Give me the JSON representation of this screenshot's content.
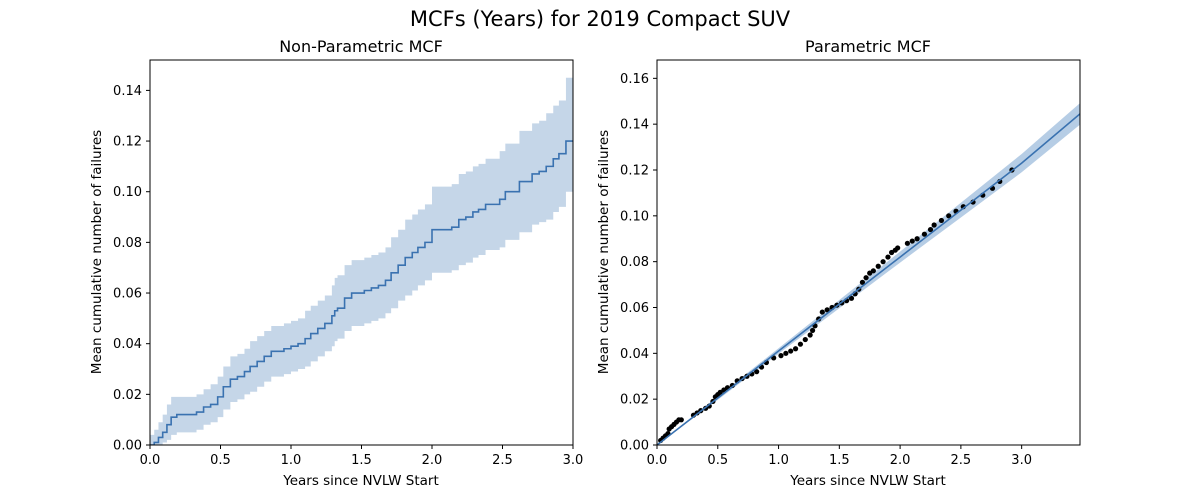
{
  "figure": {
    "title": "MCFs (Years) for 2019 Compact SUV"
  },
  "chart_data": [
    {
      "type": "line",
      "title": "Non-Parametric MCF",
      "xlabel": "Years since NVLW Start",
      "ylabel": "Mean cumulative number of failures",
      "xlim": [
        0,
        3.0
      ],
      "ylim": [
        0,
        0.152
      ],
      "xticks": [
        "0.0",
        "0.5",
        "1.0",
        "1.5",
        "2.0",
        "2.5",
        "3.0"
      ],
      "yticks": [
        "0.00",
        "0.02",
        "0.04",
        "0.06",
        "0.08",
        "0.10",
        "0.12",
        "0.14"
      ],
      "grid": false,
      "colors": {
        "line": "#3a72b0",
        "band": "#c5d6e8"
      },
      "series": [
        {
          "style": "step",
          "x": [
            0.0,
            0.03,
            0.06,
            0.09,
            0.12,
            0.15,
            0.19,
            0.24,
            0.29,
            0.33,
            0.38,
            0.43,
            0.48,
            0.52,
            0.57,
            0.62,
            0.67,
            0.71,
            0.76,
            0.81,
            0.86,
            0.9,
            0.95,
            1.0,
            1.05,
            1.1,
            1.14,
            1.19,
            1.24,
            1.29,
            1.31,
            1.33,
            1.38,
            1.43,
            1.48,
            1.52,
            1.57,
            1.62,
            1.67,
            1.71,
            1.76,
            1.81,
            1.86,
            1.9,
            1.95,
            2.0,
            2.05,
            2.1,
            2.14,
            2.19,
            2.24,
            2.29,
            2.33,
            2.38,
            2.43,
            2.48,
            2.52,
            2.57,
            2.62,
            2.67,
            2.71,
            2.76,
            2.81,
            2.86,
            2.9,
            2.95,
            3.0
          ],
          "y": [
            0.0,
            0.001,
            0.003,
            0.005,
            0.008,
            0.011,
            0.012,
            0.012,
            0.012,
            0.013,
            0.015,
            0.016,
            0.019,
            0.023,
            0.026,
            0.027,
            0.029,
            0.031,
            0.033,
            0.035,
            0.037,
            0.037,
            0.038,
            0.039,
            0.04,
            0.042,
            0.044,
            0.046,
            0.048,
            0.051,
            0.053,
            0.054,
            0.058,
            0.06,
            0.06,
            0.061,
            0.062,
            0.063,
            0.065,
            0.068,
            0.071,
            0.074,
            0.076,
            0.078,
            0.08,
            0.085,
            0.085,
            0.085,
            0.086,
            0.089,
            0.09,
            0.092,
            0.093,
            0.095,
            0.095,
            0.097,
            0.1,
            0.1,
            0.104,
            0.104,
            0.107,
            0.108,
            0.11,
            0.113,
            0.115,
            0.12,
            0.12
          ]
        }
      ],
      "band": {
        "lower": [
          0.0,
          0.0,
          0.0,
          0.001,
          0.002,
          0.004,
          0.005,
          0.005,
          0.005,
          0.006,
          0.008,
          0.009,
          0.011,
          0.014,
          0.017,
          0.018,
          0.02,
          0.021,
          0.023,
          0.025,
          0.027,
          0.027,
          0.028,
          0.029,
          0.03,
          0.031,
          0.033,
          0.035,
          0.037,
          0.039,
          0.041,
          0.042,
          0.045,
          0.047,
          0.047,
          0.048,
          0.049,
          0.05,
          0.052,
          0.054,
          0.057,
          0.059,
          0.061,
          0.063,
          0.065,
          0.068,
          0.068,
          0.068,
          0.069,
          0.071,
          0.072,
          0.074,
          0.075,
          0.077,
          0.077,
          0.078,
          0.081,
          0.081,
          0.084,
          0.084,
          0.087,
          0.088,
          0.089,
          0.092,
          0.094,
          0.1,
          0.1
        ],
        "upper": [
          0.004,
          0.006,
          0.009,
          0.012,
          0.016,
          0.019,
          0.019,
          0.019,
          0.019,
          0.02,
          0.022,
          0.024,
          0.027,
          0.031,
          0.035,
          0.036,
          0.038,
          0.041,
          0.043,
          0.045,
          0.047,
          0.047,
          0.048,
          0.049,
          0.05,
          0.053,
          0.055,
          0.057,
          0.059,
          0.063,
          0.066,
          0.067,
          0.071,
          0.073,
          0.073,
          0.074,
          0.075,
          0.076,
          0.078,
          0.082,
          0.085,
          0.089,
          0.091,
          0.093,
          0.095,
          0.102,
          0.102,
          0.102,
          0.103,
          0.107,
          0.108,
          0.11,
          0.111,
          0.113,
          0.113,
          0.116,
          0.119,
          0.119,
          0.124,
          0.124,
          0.127,
          0.128,
          0.131,
          0.134,
          0.136,
          0.145,
          0.145
        ]
      }
    },
    {
      "type": "scatter",
      "title": "Parametric MCF",
      "xlabel": "Years since NVLW Start",
      "ylabel": "Mean cumulative number of failures",
      "xlim": [
        0,
        3.48
      ],
      "ylim": [
        0,
        0.168
      ],
      "xticks": [
        "0.0",
        "0.5",
        "1.0",
        "1.5",
        "2.0",
        "2.5",
        "3.0"
      ],
      "yticks": [
        "0.00",
        "0.02",
        "0.04",
        "0.06",
        "0.08",
        "0.10",
        "0.12",
        "0.14",
        "0.16"
      ],
      "grid": false,
      "colors": {
        "line": "#3a72b0",
        "band": "#a9c4e0",
        "points": "#000000"
      },
      "series": [
        {
          "style": "points",
          "x": [
            0.03,
            0.05,
            0.07,
            0.09,
            0.1,
            0.12,
            0.14,
            0.16,
            0.18,
            0.2,
            0.3,
            0.33,
            0.36,
            0.4,
            0.43,
            0.46,
            0.48,
            0.5,
            0.52,
            0.55,
            0.58,
            0.62,
            0.66,
            0.7,
            0.74,
            0.78,
            0.82,
            0.86,
            0.9,
            0.96,
            1.02,
            1.06,
            1.1,
            1.14,
            1.18,
            1.22,
            1.26,
            1.28,
            1.3,
            1.33,
            1.36,
            1.4,
            1.44,
            1.48,
            1.52,
            1.56,
            1.6,
            1.63,
            1.66,
            1.69,
            1.72,
            1.75,
            1.78,
            1.82,
            1.86,
            1.9,
            1.93,
            1.96,
            1.98,
            2.06,
            2.1,
            2.14,
            2.2,
            2.25,
            2.28,
            2.34,
            2.4,
            2.46,
            2.52,
            2.6,
            2.68,
            2.76,
            2.82,
            2.92
          ],
          "y": [
            0.002,
            0.003,
            0.004,
            0.005,
            0.007,
            0.008,
            0.009,
            0.01,
            0.011,
            0.011,
            0.013,
            0.014,
            0.015,
            0.016,
            0.017,
            0.019,
            0.021,
            0.022,
            0.023,
            0.024,
            0.025,
            0.026,
            0.028,
            0.029,
            0.03,
            0.031,
            0.032,
            0.034,
            0.036,
            0.038,
            0.039,
            0.04,
            0.041,
            0.042,
            0.044,
            0.046,
            0.048,
            0.05,
            0.052,
            0.055,
            0.058,
            0.059,
            0.06,
            0.061,
            0.062,
            0.063,
            0.064,
            0.066,
            0.068,
            0.071,
            0.073,
            0.075,
            0.076,
            0.078,
            0.08,
            0.082,
            0.084,
            0.085,
            0.086,
            0.088,
            0.089,
            0.09,
            0.092,
            0.094,
            0.096,
            0.098,
            0.1,
            0.102,
            0.104,
            0.106,
            0.109,
            0.112,
            0.115,
            0.12
          ]
        },
        {
          "style": "line",
          "x": [
            0.0,
            0.5,
            1.0,
            1.5,
            2.0,
            2.5,
            3.0,
            3.48
          ],
          "y": [
            0.0,
            0.0205,
            0.041,
            0.0615,
            0.082,
            0.1025,
            0.123,
            0.1445
          ]
        }
      ],
      "band": {
        "x": [
          0.0,
          0.5,
          1.0,
          1.5,
          2.0,
          2.5,
          3.0,
          3.48
        ],
        "lower": [
          0.0,
          0.0197,
          0.0398,
          0.0597,
          0.0796,
          0.0993,
          0.119,
          0.1398
        ],
        "upper": [
          0.0,
          0.0213,
          0.0422,
          0.0633,
          0.0844,
          0.1057,
          0.127,
          0.1492
        ]
      }
    }
  ]
}
